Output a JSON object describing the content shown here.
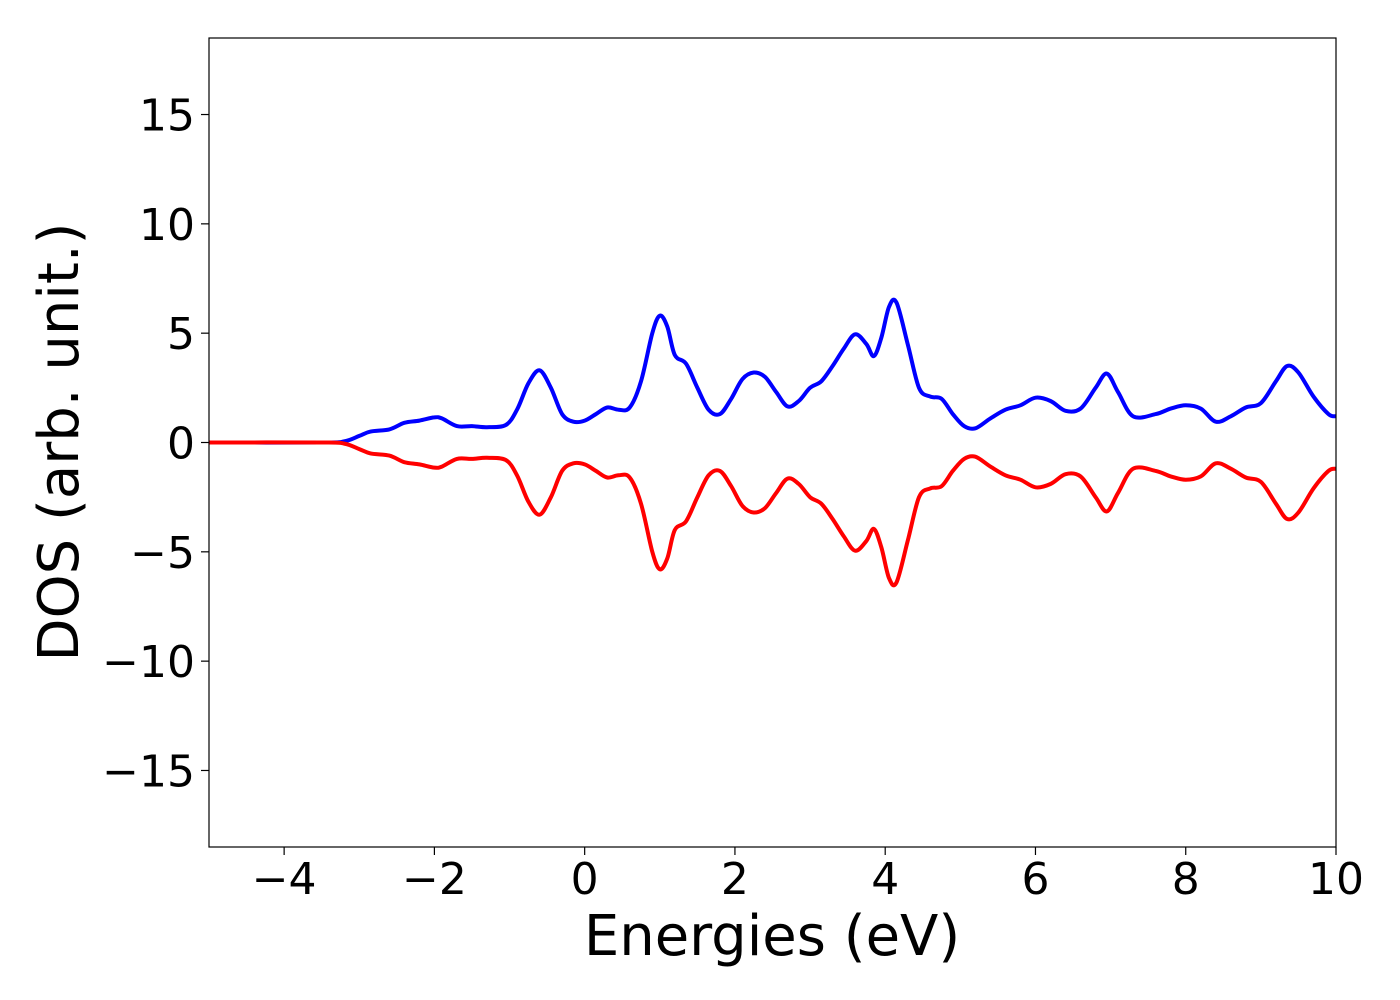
{
  "chart_data": {
    "type": "line",
    "title": "",
    "xlabel": "Energies (eV)",
    "ylabel": "DOS (arb. unit.)",
    "xlim": [
      -5,
      10
    ],
    "ylim": [
      -18.5,
      18.5
    ],
    "xticks": [
      -4,
      -2,
      0,
      2,
      4,
      6,
      8,
      10
    ],
    "xtick_labels": [
      "−4",
      "−2",
      "0",
      "2",
      "4",
      "6",
      "8",
      "10"
    ],
    "yticks": [
      15,
      10,
      5,
      0,
      -5,
      -10,
      -15
    ],
    "ytick_labels": [
      "15",
      "10",
      "5",
      "0",
      "−5",
      "−10",
      "−15"
    ],
    "grid": false,
    "legend": "none",
    "series": [
      {
        "color": "#0000ff",
        "x": [
          -5.0,
          -3.5,
          -3.2,
          -3.0,
          -2.85,
          -2.6,
          -2.4,
          -2.2,
          -2.0,
          -1.9,
          -1.7,
          -1.5,
          -1.3,
          -1.05,
          -0.9,
          -0.75,
          -0.6,
          -0.45,
          -0.3,
          -0.15,
          0.0,
          0.15,
          0.3,
          0.45,
          0.6,
          0.75,
          0.9,
          1.0,
          1.1,
          1.2,
          1.35,
          1.5,
          1.65,
          1.8,
          1.95,
          2.1,
          2.25,
          2.4,
          2.55,
          2.7,
          2.85,
          3.0,
          3.15,
          3.3,
          3.45,
          3.6,
          3.75,
          3.85,
          3.95,
          4.05,
          4.15,
          4.3,
          4.45,
          4.6,
          4.75,
          4.9,
          5.05,
          5.2,
          5.4,
          5.6,
          5.8,
          6.0,
          6.2,
          6.4,
          6.6,
          6.8,
          6.95,
          7.1,
          7.3,
          7.6,
          7.8,
          8.0,
          8.2,
          8.4,
          8.6,
          8.8,
          9.0,
          9.2,
          9.35,
          9.5,
          9.7,
          9.9,
          10.0
        ],
        "y": [
          0,
          0,
          0.05,
          0.3,
          0.5,
          0.6,
          0.9,
          1.0,
          1.15,
          1.1,
          0.75,
          0.75,
          0.7,
          0.8,
          1.5,
          2.7,
          3.3,
          2.5,
          1.3,
          0.95,
          1.0,
          1.3,
          1.6,
          1.5,
          1.6,
          2.8,
          5.0,
          5.8,
          5.3,
          4.0,
          3.6,
          2.5,
          1.5,
          1.3,
          2.0,
          2.9,
          3.2,
          3.0,
          2.3,
          1.65,
          1.9,
          2.5,
          2.8,
          3.5,
          4.3,
          4.95,
          4.5,
          3.95,
          4.8,
          6.2,
          6.4,
          4.5,
          2.5,
          2.1,
          2.0,
          1.3,
          0.75,
          0.65,
          1.1,
          1.5,
          1.7,
          2.05,
          1.9,
          1.45,
          1.55,
          2.5,
          3.15,
          2.3,
          1.2,
          1.3,
          1.55,
          1.7,
          1.55,
          0.95,
          1.2,
          1.6,
          1.8,
          2.8,
          3.5,
          3.2,
          2.1,
          1.3,
          1.2
        ]
      },
      {
        "color": "#ff0000",
        "x": [
          -5.0,
          -3.5,
          -3.2,
          -3.0,
          -2.85,
          -2.6,
          -2.4,
          -2.2,
          -2.0,
          -1.9,
          -1.7,
          -1.5,
          -1.3,
          -1.05,
          -0.9,
          -0.75,
          -0.6,
          -0.45,
          -0.3,
          -0.15,
          0.0,
          0.15,
          0.3,
          0.45,
          0.6,
          0.75,
          0.9,
          1.0,
          1.1,
          1.2,
          1.35,
          1.5,
          1.65,
          1.8,
          1.95,
          2.1,
          2.25,
          2.4,
          2.55,
          2.7,
          2.85,
          3.0,
          3.15,
          3.3,
          3.45,
          3.6,
          3.75,
          3.85,
          3.95,
          4.05,
          4.15,
          4.3,
          4.45,
          4.6,
          4.75,
          4.9,
          5.05,
          5.2,
          5.4,
          5.6,
          5.8,
          6.0,
          6.2,
          6.4,
          6.6,
          6.8,
          6.95,
          7.1,
          7.3,
          7.6,
          7.8,
          8.0,
          8.2,
          8.4,
          8.6,
          8.8,
          9.0,
          9.2,
          9.35,
          9.5,
          9.7,
          9.9,
          10.0
        ],
        "y": [
          0,
          0,
          -0.05,
          -0.3,
          -0.5,
          -0.6,
          -0.9,
          -1.0,
          -1.15,
          -1.1,
          -0.75,
          -0.75,
          -0.7,
          -0.8,
          -1.5,
          -2.7,
          -3.3,
          -2.5,
          -1.3,
          -0.95,
          -1.0,
          -1.3,
          -1.6,
          -1.5,
          -1.6,
          -2.8,
          -5.0,
          -5.8,
          -5.3,
          -4.0,
          -3.6,
          -2.5,
          -1.5,
          -1.3,
          -2.0,
          -2.9,
          -3.2,
          -3.0,
          -2.3,
          -1.65,
          -1.9,
          -2.5,
          -2.8,
          -3.5,
          -4.3,
          -4.95,
          -4.5,
          -3.95,
          -4.8,
          -6.2,
          -6.4,
          -4.5,
          -2.5,
          -2.1,
          -2.0,
          -1.3,
          -0.75,
          -0.65,
          -1.1,
          -1.5,
          -1.7,
          -2.05,
          -1.9,
          -1.45,
          -1.55,
          -2.5,
          -3.15,
          -2.3,
          -1.2,
          -1.3,
          -1.55,
          -1.7,
          -1.55,
          -0.95,
          -1.2,
          -1.6,
          -1.8,
          -2.8,
          -3.5,
          -3.2,
          -2.1,
          -1.3,
          -1.2
        ]
      }
    ]
  }
}
